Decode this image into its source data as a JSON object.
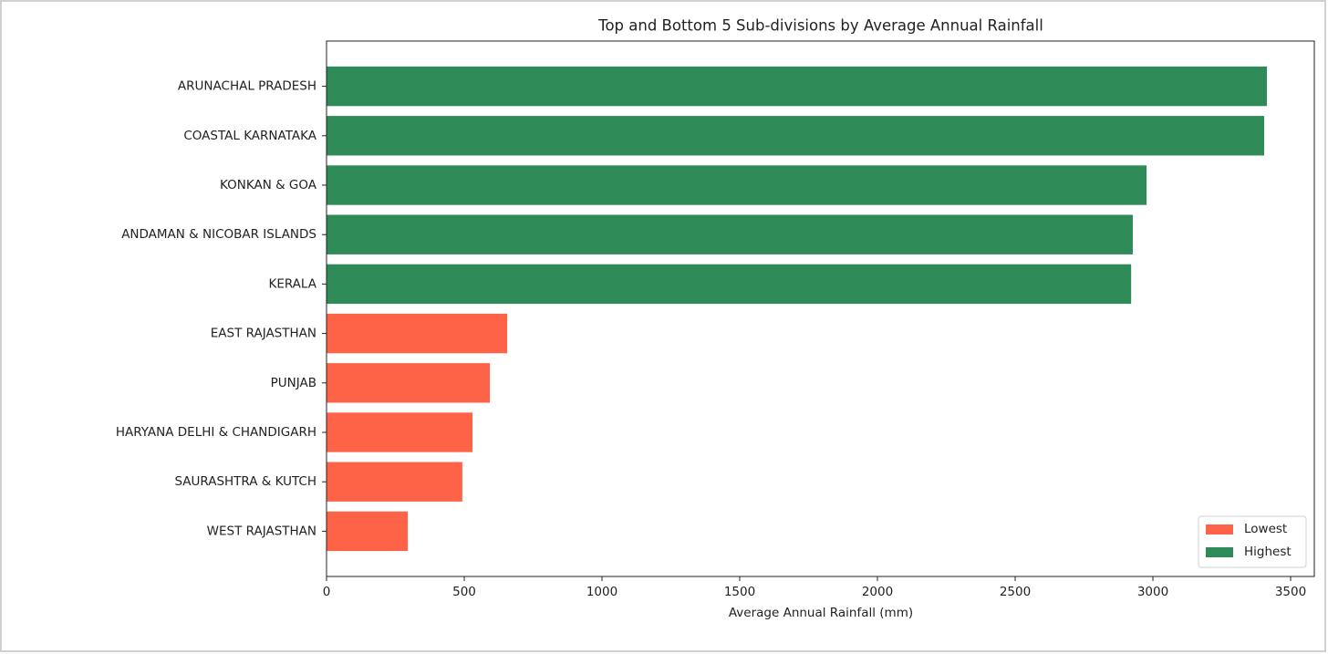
{
  "chart_data": {
    "type": "barh",
    "title": "Top and Bottom 5 Sub-divisions by Average Annual Rainfall",
    "xlabel": "Average Annual Rainfall (mm)",
    "categories": [
      "ARUNACHAL PRADESH",
      "COASTAL KARNATAKA",
      "KONKAN & GOA",
      "ANDAMAN & NICOBAR ISLANDS",
      "KERALA",
      "EAST RAJASTHAN",
      "PUNJAB",
      "HARYANA DELHI & CHANDIGARH",
      "SAURASHTRA & KUTCH",
      "WEST RAJASTHAN"
    ],
    "series": [
      {
        "name": "Lowest",
        "color": "#ff6347",
        "values": [
          null,
          null,
          null,
          null,
          null,
          656,
          593,
          530,
          493,
          295
        ]
      },
      {
        "name": "Highest",
        "color": "#2e8b57",
        "values": [
          3414,
          3404,
          2977,
          2927,
          2921,
          null,
          null,
          null,
          null,
          null
        ]
      }
    ],
    "xlim": [
      0,
      3586
    ],
    "xticks": [
      0,
      500,
      1000,
      1500,
      2000,
      2500,
      3000,
      3500
    ],
    "legend": "lower right",
    "grid": false
  }
}
